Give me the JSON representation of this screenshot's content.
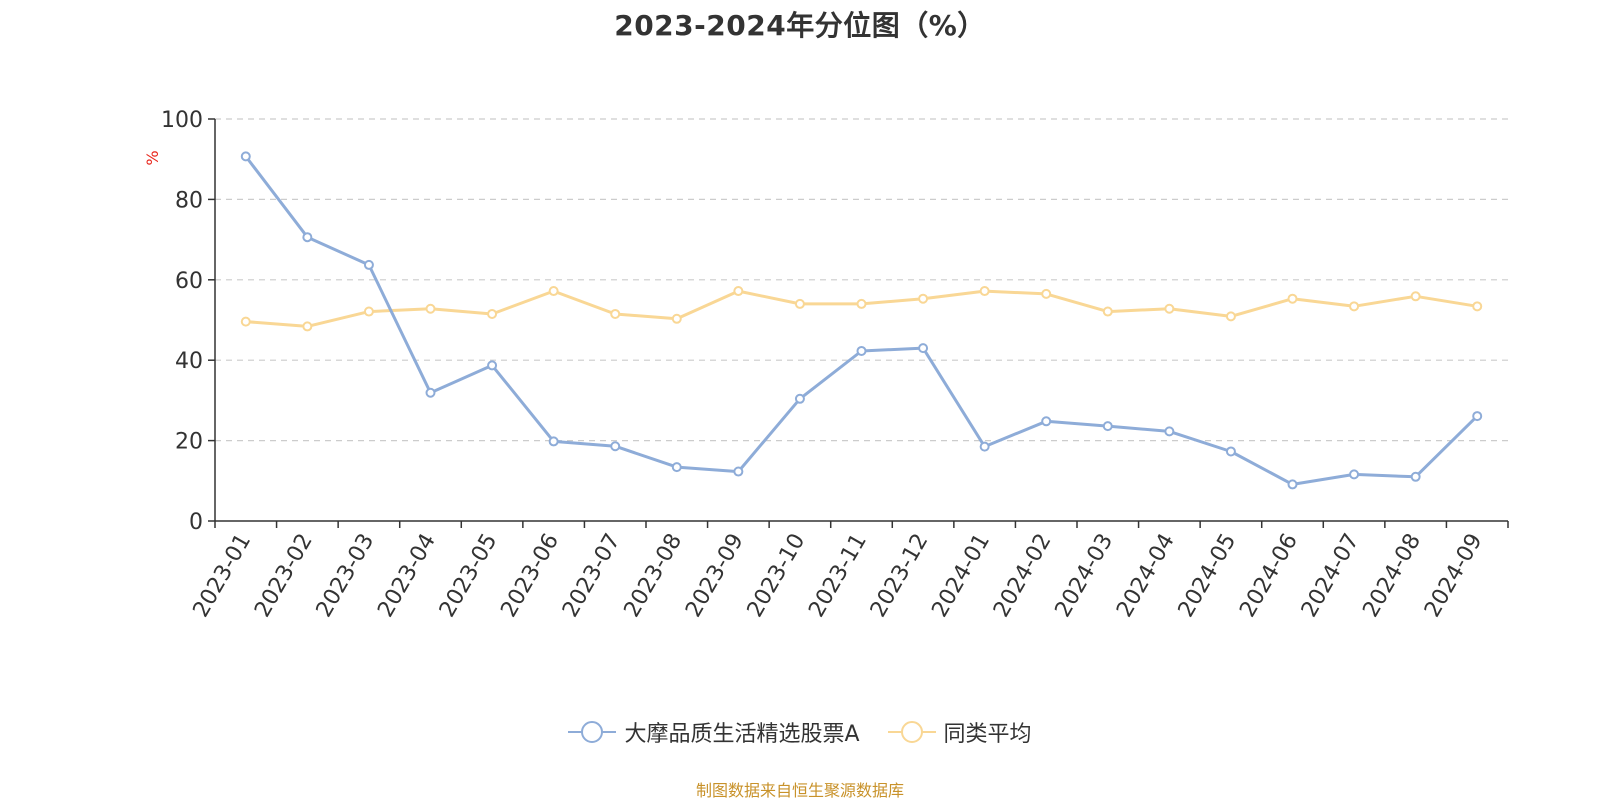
{
  "chart_data": {
    "type": "line",
    "title": "2023-2024年分位图（%）",
    "ylabel": "%",
    "ylim": [
      0,
      100
    ],
    "yticks": [
      0,
      20,
      40,
      60,
      80,
      100
    ],
    "grid": true,
    "legend_position": "bottom-center",
    "categories": [
      "2023-01",
      "2023-02",
      "2023-03",
      "2023-04",
      "2023-05",
      "2023-06",
      "2023-07",
      "2023-08",
      "2023-09",
      "2023-10",
      "2023-11",
      "2023-12",
      "2024-01",
      "2024-02",
      "2024-03",
      "2024-04",
      "2024-05",
      "2024-06",
      "2024-07",
      "2024-08",
      "2024-09"
    ],
    "series": [
      {
        "name": "大摩品质生活精选股票A",
        "color": "#8eacd8",
        "values": [
          90.7,
          70.6,
          63.7,
          31.9,
          38.7,
          19.8,
          18.6,
          13.4,
          12.3,
          30.4,
          42.3,
          43.0,
          18.5,
          24.8,
          23.6,
          22.3,
          17.3,
          9.1,
          11.6,
          11.0,
          26.1
        ]
      },
      {
        "name": "同类平均",
        "color": "#f9d795",
        "values": [
          49.6,
          48.4,
          52.1,
          52.8,
          51.5,
          57.2,
          51.5,
          50.3,
          57.2,
          54.0,
          54.0,
          55.3,
          57.2,
          56.5,
          52.1,
          52.8,
          50.9,
          55.3,
          53.4,
          55.9,
          53.4
        ]
      }
    ]
  },
  "source_note": "制图数据来自恒生聚源数据库"
}
